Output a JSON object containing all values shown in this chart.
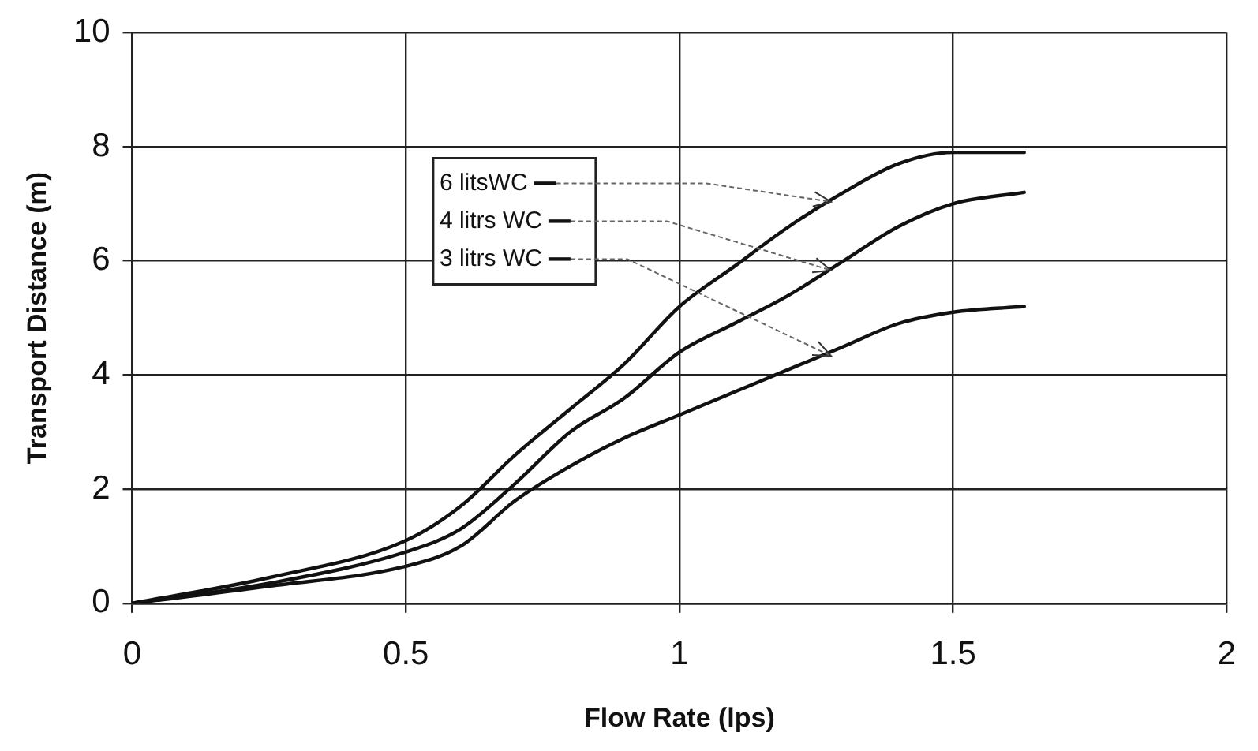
{
  "chart_data": {
    "type": "line",
    "xlabel": "Flow Rate (lps)",
    "ylabel": "Transport Distance (m)",
    "x": [
      0,
      0.25,
      0.5,
      0.6,
      0.7,
      0.8,
      0.9,
      1.0,
      1.1,
      1.2,
      1.3,
      1.4,
      1.5,
      1.63
    ],
    "series": [
      {
        "name": "6 litsWC",
        "color": "#111111",
        "values": [
          0,
          0.45,
          1.1,
          1.7,
          2.6,
          3.4,
          4.2,
          5.2,
          5.9,
          6.6,
          7.2,
          7.7,
          7.9,
          7.9
        ]
      },
      {
        "name": "4 litrs WC",
        "color": "#111111",
        "values": [
          0,
          0.35,
          0.9,
          1.3,
          2.1,
          3.0,
          3.6,
          4.4,
          4.9,
          5.4,
          6.0,
          6.6,
          7.0,
          7.2
        ]
      },
      {
        "name": "3 litrs WC",
        "color": "#111111",
        "values": [
          0,
          0.3,
          0.65,
          1.0,
          1.8,
          2.4,
          2.9,
          3.3,
          3.7,
          4.1,
          4.5,
          4.9,
          5.1,
          5.2
        ]
      }
    ],
    "xlim": [
      0,
      2
    ],
    "xticks": [
      0,
      0.5,
      1,
      1.5,
      2
    ],
    "ylim": [
      0,
      10
    ],
    "yticks": [
      0,
      2,
      4,
      6,
      8,
      10
    ],
    "grid": true,
    "legend": "top",
    "marker": "none",
    "line_style": "solid"
  }
}
